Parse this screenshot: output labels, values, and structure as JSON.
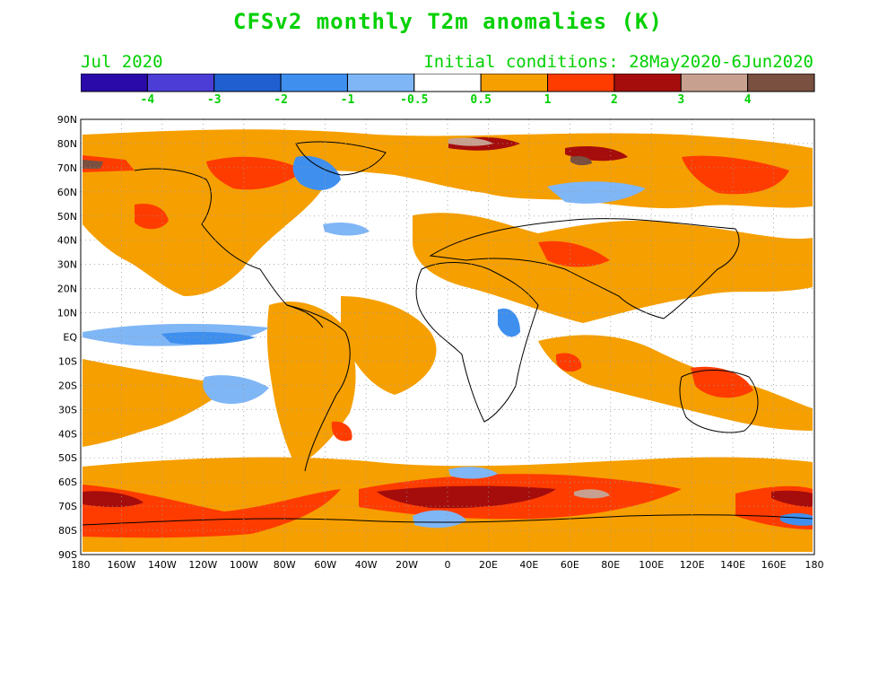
{
  "title": "CFSv2 monthly T2m anomalies (K)",
  "valid_month": "Jul 2020",
  "initial_conditions": "Initial conditions: 28May2020-6Jun2020",
  "legend": {
    "bins": [
      {
        "color": "#2a0aa8"
      },
      {
        "color": "#4b3dd6"
      },
      {
        "color": "#1f5fd0"
      },
      {
        "color": "#3f8fee"
      },
      {
        "color": "#7fb6f5"
      },
      {
        "color": "#ffffff"
      },
      {
        "color": "#f5a000"
      },
      {
        "color": "#ff3c00"
      },
      {
        "color": "#a50d0d"
      },
      {
        "color": "#c8a090"
      },
      {
        "color": "#7a5040"
      }
    ],
    "labels": [
      "-4",
      "-3",
      "-2",
      "-1",
      "-0.5",
      "0.5",
      "1",
      "2",
      "3",
      "4"
    ]
  },
  "axes": {
    "lat_labels": [
      "90N",
      "80N",
      "70N",
      "60N",
      "50N",
      "40N",
      "30N",
      "20N",
      "10N",
      "EQ",
      "10S",
      "20S",
      "30S",
      "40S",
      "50S",
      "60S",
      "70S",
      "80S",
      "90S"
    ],
    "lon_labels": [
      "180",
      "160W",
      "140W",
      "120W",
      "100W",
      "80W",
      "60W",
      "40W",
      "20W",
      "0",
      "20E",
      "40E",
      "60E",
      "80E",
      "100E",
      "120E",
      "140E",
      "160E",
      "180"
    ]
  },
  "colors": {
    "text": "#00d000",
    "warm": "#f5a000",
    "hot": "#ff3c00",
    "darkred": "#a50d0d",
    "pink": "#c8a090",
    "cool": "#7fb6f5",
    "blue": "#3f8fee"
  }
}
